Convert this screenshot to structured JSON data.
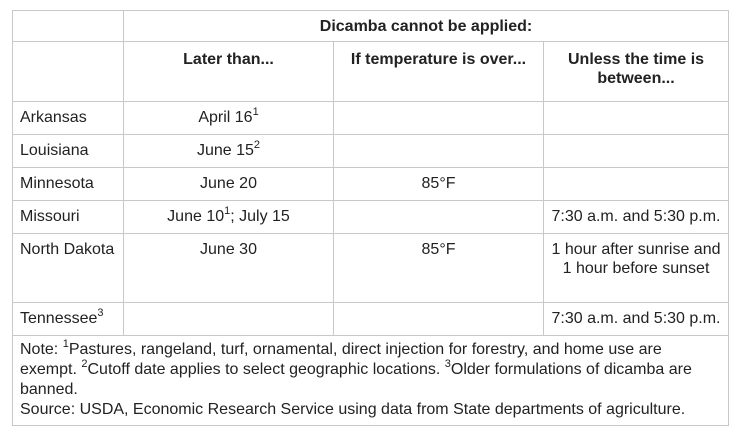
{
  "table": {
    "group_header": "Dicamba cannot be applied:",
    "columns": [
      "Later than...",
      "If temperature is over...",
      "Unless the time is between..."
    ],
    "rows": [
      {
        "state": "Arkansas",
        "later_than": {
          "text": "April 16",
          "sup": "1"
        },
        "temperature": "",
        "time": ""
      },
      {
        "state": "Louisiana",
        "later_than": {
          "text": "June 15",
          "sup": "2"
        },
        "temperature": "",
        "time": ""
      },
      {
        "state": "Minnesota",
        "later_than": {
          "text": "June 20",
          "sup": ""
        },
        "temperature": "85°F",
        "time": ""
      },
      {
        "state": "Missouri",
        "later_than": {
          "text": "June 10",
          "sup": "1",
          "text_after": "; July 15"
        },
        "temperature": "",
        "time": "7:30 a.m. and 5:30 p.m."
      },
      {
        "state": "North Dakota",
        "later_than": {
          "text": "June 30",
          "sup": ""
        },
        "temperature": "85°F",
        "time": "1 hour after sunrise and 1 hour before sunset"
      },
      {
        "state": "Tennessee",
        "state_sup": "3",
        "later_than": {
          "text": "",
          "sup": ""
        },
        "temperature": "",
        "time": "7:30 a.m. and 5:30 p.m."
      }
    ]
  },
  "note": {
    "prefix": "Note: ",
    "items": [
      {
        "sup": "1",
        "text": "Pastures, rangeland, turf, ornamental, direct injection for forestry, and home use are exempt. "
      },
      {
        "sup": "2",
        "text": "Cutoff date applies to select geographic locations. "
      },
      {
        "sup": "3",
        "text": "Older formulations of dicamba are banned."
      }
    ],
    "source": "Source: USDA, Economic Research Service using data from State departments of agriculture."
  }
}
